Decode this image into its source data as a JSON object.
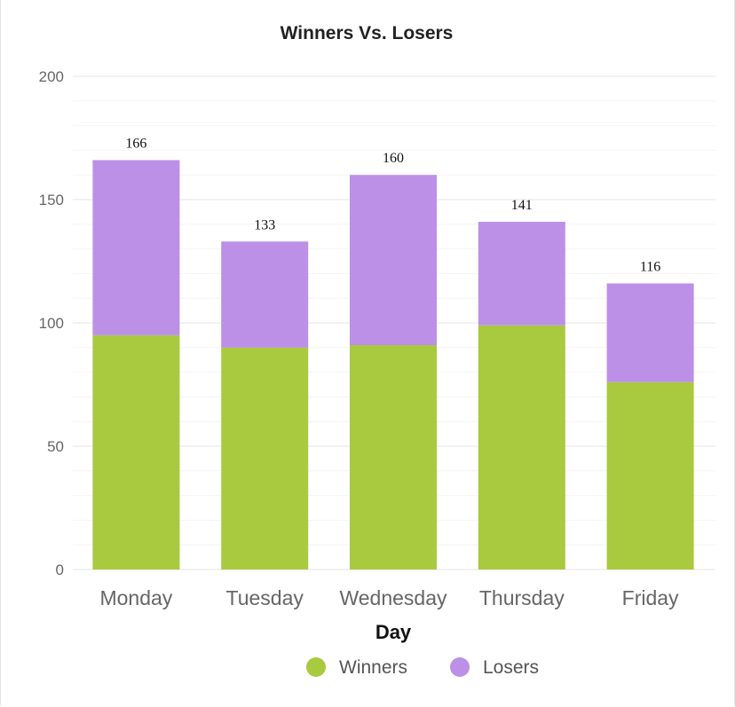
{
  "chart_data": {
    "type": "bar",
    "stacked": true,
    "title": "Winners Vs. Losers",
    "xlabel": "Day",
    "ylabel": "",
    "categories": [
      "Monday",
      "Tuesday",
      "Wednesday",
      "Thursday",
      "Friday"
    ],
    "series": [
      {
        "name": "Winners",
        "color": "#a9c93f",
        "values": [
          95,
          90,
          91,
          99,
          76
        ]
      },
      {
        "name": "Losers",
        "color": "#bb90e6",
        "values": [
          71,
          43,
          69,
          42,
          40
        ]
      }
    ],
    "totals": [
      166,
      133,
      160,
      141,
      116
    ],
    "ylim": [
      0,
      200
    ],
    "yticks": [
      0,
      50,
      100,
      150,
      200
    ],
    "grid": true,
    "legend_position": "bottom-center"
  }
}
